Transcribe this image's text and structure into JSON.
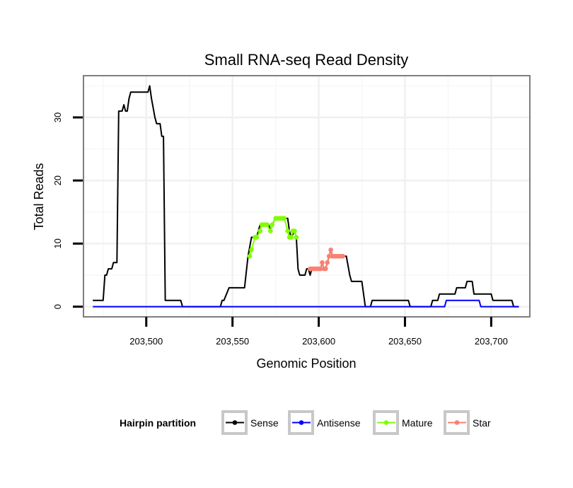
{
  "chart_data": {
    "type": "line",
    "title": "Small RNA-seq Read Density",
    "xlabel": "Genomic Position",
    "ylabel": "Total Reads",
    "xlim": [
      203464,
      203722
    ],
    "ylim": [
      -1.5,
      36.5
    ],
    "x_ticks": [
      {
        "value": 203500,
        "label": "203,500"
      },
      {
        "value": 203550,
        "label": "203,550"
      },
      {
        "value": 203600,
        "label": "203,600"
      },
      {
        "value": 203650,
        "label": "203,650"
      },
      {
        "value": 203700,
        "label": "203,700"
      }
    ],
    "y_ticks": [
      {
        "value": 0,
        "label": "0"
      },
      {
        "value": 10,
        "label": "10"
      },
      {
        "value": 20,
        "label": "20"
      },
      {
        "value": 30,
        "label": "30"
      }
    ],
    "grid": true,
    "legend": {
      "title": "Hairpin partition",
      "position": "bottom",
      "entries": [
        {
          "name": "Sense",
          "color": "#000000"
        },
        {
          "name": "Antisense",
          "color": "#0000ff"
        },
        {
          "name": "Mature",
          "color": "#7fff00"
        },
        {
          "name": "Star",
          "color": "#fa8072"
        }
      ]
    },
    "series": [
      {
        "name": "Sense",
        "color": "#000000",
        "points": [
          [
            203469,
            1
          ],
          [
            203475,
            1
          ],
          [
            203476,
            5
          ],
          [
            203477,
            5
          ],
          [
            203478,
            6
          ],
          [
            203480,
            6
          ],
          [
            203481,
            7
          ],
          [
            203483,
            7
          ],
          [
            203484,
            31
          ],
          [
            203486,
            31
          ],
          [
            203487,
            32
          ],
          [
            203488,
            31
          ],
          [
            203489,
            31
          ],
          [
            203490,
            33
          ],
          [
            203491,
            34
          ],
          [
            203501,
            34
          ],
          [
            203502,
            35
          ],
          [
            203503,
            33
          ],
          [
            203505,
            30
          ],
          [
            203506,
            29
          ],
          [
            203508,
            29
          ],
          [
            203509,
            27
          ],
          [
            203510,
            27
          ],
          [
            203511,
            1
          ],
          [
            203520,
            1
          ],
          [
            203521,
            0
          ],
          [
            203543,
            0
          ],
          [
            203544,
            1
          ],
          [
            203545,
            1
          ],
          [
            203548,
            3
          ],
          [
            203557,
            3
          ],
          [
            203559,
            8
          ],
          [
            203561,
            11
          ],
          [
            203564,
            11
          ],
          [
            203565,
            12
          ],
          [
            203566,
            13
          ],
          [
            203571,
            13
          ],
          [
            203572,
            12
          ],
          [
            203573,
            13
          ],
          [
            203575,
            14
          ],
          [
            203582,
            14
          ],
          [
            203583,
            12
          ],
          [
            203584,
            11
          ],
          [
            203586,
            12
          ],
          [
            203587,
            11
          ],
          [
            203588,
            6
          ],
          [
            203589,
            5
          ],
          [
            203592,
            5
          ],
          [
            203593,
            6
          ],
          [
            203594,
            6
          ],
          [
            203595,
            5
          ],
          [
            203596,
            6
          ],
          [
            203601,
            6
          ],
          [
            203602,
            7
          ],
          [
            203603,
            6
          ],
          [
            203604,
            6
          ],
          [
            203605,
            7
          ],
          [
            203606,
            8
          ],
          [
            203607,
            9
          ],
          [
            203608,
            8
          ],
          [
            203616,
            8
          ],
          [
            203618,
            5
          ],
          [
            203619,
            4
          ],
          [
            203625,
            4
          ],
          [
            203627,
            0
          ],
          [
            203630,
            0
          ],
          [
            203631,
            1
          ],
          [
            203652,
            1
          ],
          [
            203653,
            0
          ],
          [
            203665,
            0
          ],
          [
            203666,
            1
          ],
          [
            203669,
            1
          ],
          [
            203670,
            2
          ],
          [
            203679,
            2
          ],
          [
            203680,
            3
          ],
          [
            203685,
            3
          ],
          [
            203686,
            4
          ],
          [
            203689,
            4
          ],
          [
            203690,
            2
          ],
          [
            203700,
            2
          ],
          [
            203701,
            1
          ],
          [
            203712,
            1
          ],
          [
            203713,
            0
          ],
          [
            203716,
            0
          ]
        ]
      },
      {
        "name": "Antisense",
        "color": "#0000ff",
        "points": [
          [
            203469,
            0
          ],
          [
            203673,
            0
          ],
          [
            203674,
            1
          ],
          [
            203693,
            1
          ],
          [
            203694,
            0
          ],
          [
            203716,
            0
          ]
        ]
      },
      {
        "name": "Mature",
        "color": "#7fff00",
        "points": [
          [
            203560,
            8
          ],
          [
            203561,
            9
          ],
          [
            203563,
            11
          ],
          [
            203564,
            11
          ],
          [
            203566,
            12
          ],
          [
            203567,
            13
          ],
          [
            203568,
            13
          ],
          [
            203569,
            13
          ],
          [
            203570,
            13
          ],
          [
            203572,
            12
          ],
          [
            203573,
            13
          ],
          [
            203575,
            14
          ],
          [
            203576,
            14
          ],
          [
            203577,
            14
          ],
          [
            203578,
            14
          ],
          [
            203579,
            14
          ],
          [
            203580,
            14
          ],
          [
            203582,
            12
          ],
          [
            203583,
            11
          ],
          [
            203584,
            11
          ],
          [
            203585,
            12
          ],
          [
            203586,
            12
          ],
          [
            203587,
            11
          ]
        ]
      },
      {
        "name": "Star",
        "color": "#fa8072",
        "points": [
          [
            203595,
            6
          ],
          [
            203596,
            6
          ],
          [
            203597,
            6
          ],
          [
            203598,
            6
          ],
          [
            203599,
            6
          ],
          [
            203600,
            6
          ],
          [
            203601,
            6
          ],
          [
            203602,
            7
          ],
          [
            203603,
            6
          ],
          [
            203604,
            6
          ],
          [
            203605,
            7
          ],
          [
            203606,
            8
          ],
          [
            203607,
            9
          ],
          [
            203608,
            8
          ],
          [
            203609,
            8
          ],
          [
            203610,
            8
          ],
          [
            203611,
            8
          ],
          [
            203612,
            8
          ],
          [
            203613,
            8
          ],
          [
            203614,
            8
          ]
        ]
      }
    ]
  }
}
